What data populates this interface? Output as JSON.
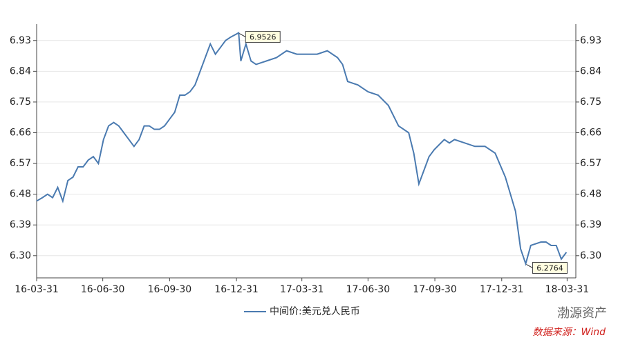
{
  "chart_data": {
    "type": "line",
    "x": [
      "2016-03-31",
      "2016-04-08",
      "2016-04-15",
      "2016-04-22",
      "2016-04-29",
      "2016-05-06",
      "2016-05-13",
      "2016-05-20",
      "2016-05-27",
      "2016-06-03",
      "2016-06-10",
      "2016-06-17",
      "2016-06-24",
      "2016-07-01",
      "2016-07-08",
      "2016-07-15",
      "2016-07-22",
      "2016-07-29",
      "2016-08-05",
      "2016-08-12",
      "2016-08-19",
      "2016-08-26",
      "2016-09-02",
      "2016-09-09",
      "2016-09-16",
      "2016-09-23",
      "2016-09-30",
      "2016-10-07",
      "2016-10-14",
      "2016-10-21",
      "2016-10-28",
      "2016-11-04",
      "2016-11-11",
      "2016-11-18",
      "2016-11-25",
      "2016-12-02",
      "2016-12-09",
      "2016-12-16",
      "2016-12-23",
      "2017-01-03",
      "2017-01-06",
      "2017-01-13",
      "2017-01-20",
      "2017-01-27",
      "2017-02-10",
      "2017-02-24",
      "2017-03-10",
      "2017-03-24",
      "2017-04-07",
      "2017-04-21",
      "2017-05-05",
      "2017-05-19",
      "2017-05-26",
      "2017-06-02",
      "2017-06-16",
      "2017-06-30",
      "2017-07-14",
      "2017-07-28",
      "2017-08-11",
      "2017-08-25",
      "2017-09-01",
      "2017-09-08",
      "2017-09-15",
      "2017-09-22",
      "2017-09-29",
      "2017-10-13",
      "2017-10-20",
      "2017-10-27",
      "2017-11-10",
      "2017-11-24",
      "2017-12-08",
      "2017-12-22",
      "2018-01-05",
      "2018-01-12",
      "2018-01-19",
      "2018-01-26",
      "2018-02-02",
      "2018-02-09",
      "2018-02-23",
      "2018-03-02",
      "2018-03-09",
      "2018-03-16",
      "2018-03-23",
      "2018-03-30"
    ],
    "series": [
      {
        "name": "中间价:美元兑人民币",
        "color": "#4a7ab0",
        "values": [
          6.46,
          6.47,
          6.48,
          6.47,
          6.5,
          6.46,
          6.52,
          6.53,
          6.56,
          6.56,
          6.58,
          6.59,
          6.57,
          6.64,
          6.68,
          6.69,
          6.68,
          6.66,
          6.64,
          6.62,
          6.64,
          6.68,
          6.68,
          6.67,
          6.67,
          6.68,
          6.7,
          6.72,
          6.77,
          6.77,
          6.78,
          6.8,
          6.84,
          6.88,
          6.92,
          6.89,
          6.91,
          6.93,
          6.94,
          6.9526,
          6.87,
          6.92,
          6.87,
          6.86,
          6.87,
          6.88,
          6.9,
          6.89,
          6.89,
          6.89,
          6.9,
          6.88,
          6.86,
          6.81,
          6.8,
          6.78,
          6.77,
          6.74,
          6.68,
          6.66,
          6.6,
          6.51,
          6.55,
          6.59,
          6.61,
          6.64,
          6.63,
          6.64,
          6.63,
          6.62,
          6.62,
          6.6,
          6.53,
          6.48,
          6.43,
          6.32,
          6.2764,
          6.33,
          6.34,
          6.34,
          6.33,
          6.33,
          6.29,
          6.31
        ]
      }
    ],
    "xlim": [
      "2016-03-31",
      "2018-04-12"
    ],
    "xticks": [
      {
        "value": "2016-03-31",
        "label": "16-03-31"
      },
      {
        "value": "2016-06-30",
        "label": "16-06-30"
      },
      {
        "value": "2016-09-30",
        "label": "16-09-30"
      },
      {
        "value": "2016-12-31",
        "label": "16-12-31"
      },
      {
        "value": "2017-03-31",
        "label": "17-03-31"
      },
      {
        "value": "2017-06-30",
        "label": "17-06-30"
      },
      {
        "value": "2017-09-30",
        "label": "17-09-30"
      },
      {
        "value": "2017-12-31",
        "label": "17-12-31"
      },
      {
        "value": "2018-03-31",
        "label": "18-03-31"
      }
    ],
    "ylim": [
      6.235,
      6.978
    ],
    "yticks": [
      {
        "value": 6.3,
        "label": "6.30"
      },
      6.39,
      6.48,
      6.57,
      6.66,
      6.75,
      6.84,
      6.93
    ],
    "grid": true,
    "annotations": [
      {
        "x": "2017-01-03",
        "y": 6.9526
      },
      {
        "x": "2018-02-02",
        "y": 6.2764
      }
    ],
    "source": "数据来源：Wind",
    "watermark": "渤源资产"
  }
}
